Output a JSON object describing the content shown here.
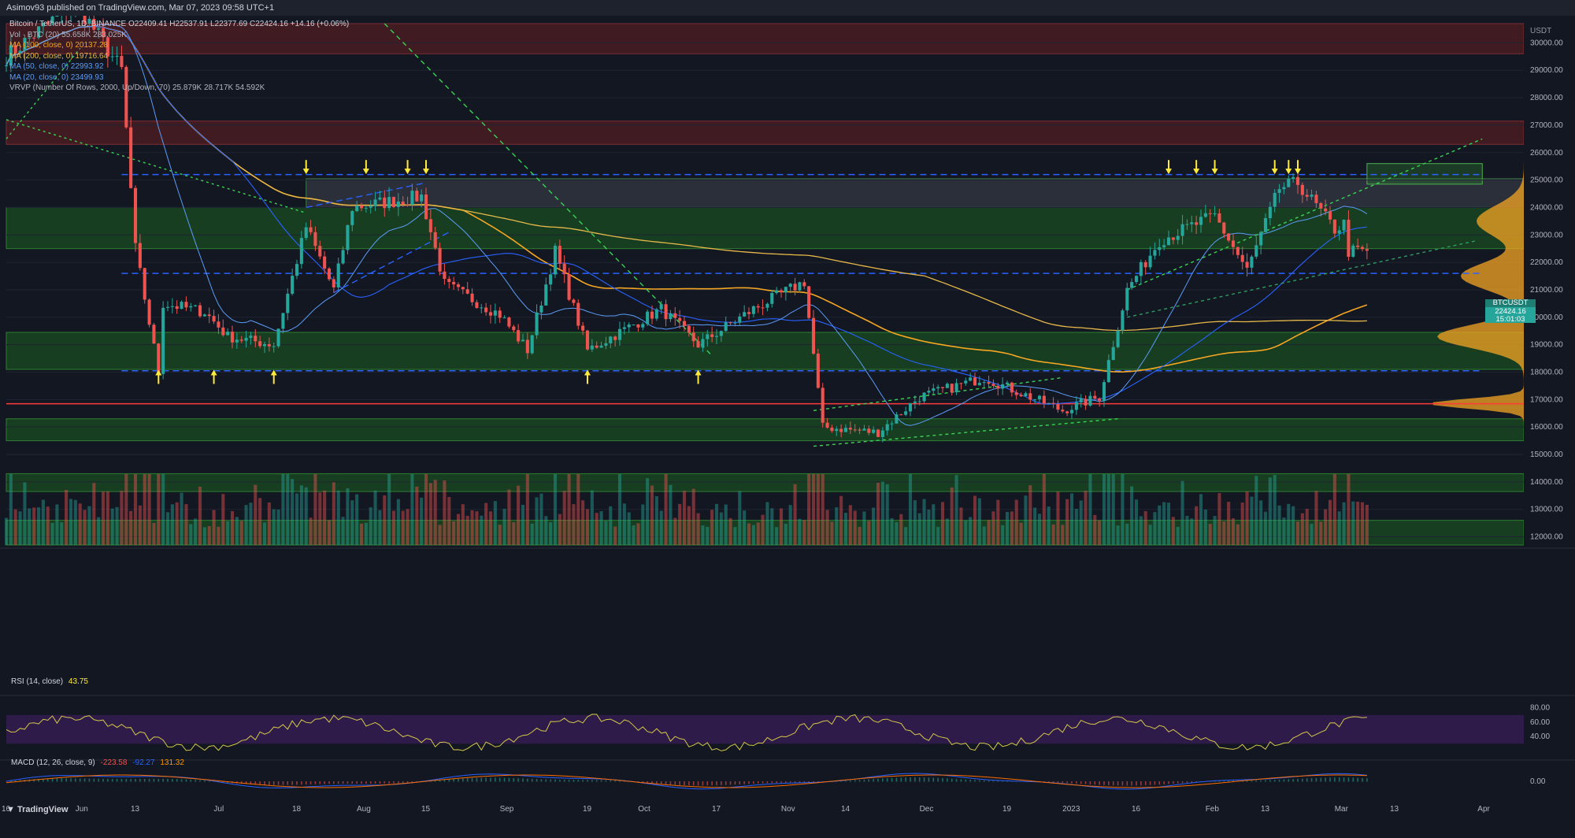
{
  "header": {
    "published": "Asimov93 published on TradingView.com, Mar 07, 2023 09:58 UTC+1"
  },
  "legend": {
    "ohlc": "Bitcoin / TetherUS, 1D, BINANCE  O22409.41  H22537.91  L22377.69  C22424.16  +14.16 (+0.06%)",
    "vol": "Vol · BTC (20)  55.658K  283.025K",
    "ma1": "MA (100, close, 0)  20137.28",
    "ma2": "MA (200, close, 0)  19716.64",
    "ma3": "MA (50, close, 0)  22993.92",
    "ma4": "MA (20, close, 0)  23499.93",
    "vrvp": "VRVP (Number Of Rows, 2000, Up/Down, 70)  25.879K  28.717K  54.592K",
    "rsi": "RSI (14, close)",
    "rsi_val": "43.75",
    "macd": "MACD (12, 26, close, 9)",
    "macd_vals": [
      "-223.58",
      "-92.27",
      "131.32"
    ]
  },
  "price_badge": {
    "symbol": "BTCUSDT",
    "price": "22424.16",
    "countdown": "15:01:03"
  },
  "axis": {
    "currency": "USDT",
    "price_ticks": [
      "30000.00",
      "29000.00",
      "28000.00",
      "27000.00",
      "26000.00",
      "25000.00",
      "24000.00",
      "23000.00",
      "22000.00",
      "21000.00",
      "20000.00",
      "19000.00",
      "18000.00",
      "17000.00",
      "16000.00",
      "15000.00",
      "14000.00",
      "13000.00",
      "12000.00"
    ],
    "rsi_ticks": [
      "80.00",
      "60.00",
      "40.00"
    ],
    "macd_ticks": [
      "0.00"
    ],
    "time_ticks": [
      "16",
      "Jun",
      "13",
      "Jul",
      "18",
      "Aug",
      "15",
      "Sep",
      "19",
      "Oct",
      "17",
      "Nov",
      "14",
      "Dec",
      "19",
      "2023",
      "16",
      "Feb",
      "13",
      "Mar",
      "13",
      "Apr"
    ]
  },
  "footer": {
    "brand": "TradingView"
  },
  "colors": {
    "bg": "#131722",
    "up": "#26a69a",
    "down": "#ef5350",
    "zone_green": "#1b5e20",
    "zone_red": "#4a1c22",
    "ma100": "#f5a623",
    "ma200": "#e6b84a",
    "ma50": "#2962ff",
    "ma20": "#5b9cf6",
    "rsi_band": "#3a1e5a",
    "yellow": "#ffeb3b",
    "blue_dash": "#2962ff"
  },
  "chart_data": {
    "type": "candlestick",
    "title": "Bitcoin / TetherUS, 1D, BINANCE",
    "ylabel": "USDT",
    "ylim": [
      11700,
      30700
    ],
    "x_range": [
      "2022-05-16",
      "2023-04-10"
    ],
    "current_price": 22424.16,
    "anchors": [
      [
        "2022-05-16",
        29500
      ],
      [
        "2022-05-31",
        31500
      ],
      [
        "2022-06-10",
        29000
      ],
      [
        "2022-06-13",
        22500
      ],
      [
        "2022-06-18",
        18000
      ],
      [
        "2022-06-19",
        20500
      ],
      [
        "2022-06-28",
        20200
      ],
      [
        "2022-07-03",
        19300
      ],
      [
        "2022-07-13",
        19000
      ],
      [
        "2022-07-20",
        23300
      ],
      [
        "2022-07-26",
        21000
      ],
      [
        "2022-07-30",
        24000
      ],
      [
        "2022-08-14",
        24400
      ],
      [
        "2022-08-19",
        21200
      ],
      [
        "2022-08-31",
        20100
      ],
      [
        "2022-09-06",
        18800
      ],
      [
        "2022-09-12",
        22400
      ],
      [
        "2022-09-19",
        18800
      ],
      [
        "2022-10-05",
        20300
      ],
      [
        "2022-10-13",
        19000
      ],
      [
        "2022-10-25",
        20300
      ],
      [
        "2022-11-05",
        21300
      ],
      [
        "2022-11-09",
        16000
      ],
      [
        "2022-11-21",
        15800
      ],
      [
        "2022-11-30",
        17100
      ],
      [
        "2022-12-14",
        17800
      ],
      [
        "2022-12-31",
        16600
      ],
      [
        "2023-01-08",
        17100
      ],
      [
        "2023-01-14",
        21000
      ],
      [
        "2023-01-21",
        22800
      ],
      [
        "2023-02-02",
        23700
      ],
      [
        "2023-02-09",
        21700
      ],
      [
        "2023-02-16",
        24700
      ],
      [
        "2023-02-20",
        24900
      ],
      [
        "2023-02-28",
        23200
      ],
      [
        "2023-03-02",
        23400
      ],
      [
        "2023-03-03",
        22400
      ],
      [
        "2023-03-07",
        22424
      ]
    ],
    "zones_green": [
      [
        22500,
        24000
      ],
      [
        18100,
        19450
      ],
      [
        15500,
        16300
      ],
      [
        13650,
        14300
      ],
      [
        11700,
        12600
      ]
    ],
    "zones_red": [
      [
        29600,
        30700
      ],
      [
        26300,
        27150
      ]
    ],
    "zone_grey": [
      24000,
      25050
    ],
    "horizontal_lines": [
      {
        "price": 16850,
        "color": "red"
      },
      {
        "price": 25200,
        "style": "dashed-blue"
      },
      {
        "price": 18050,
        "style": "dashed-blue"
      },
      {
        "price": 21600,
        "style": "dashed-blue"
      }
    ],
    "yellow_arrow_dates": [
      "2022-06-18",
      "2022-06-30",
      "2022-07-13",
      "2022-07-20",
      "2022-08-02",
      "2022-08-11",
      "2022-08-15",
      "2022-09-19",
      "2022-10-13",
      "2023-01-23",
      "2023-01-29",
      "2023-02-02",
      "2023-02-15",
      "2023-02-18",
      "2023-02-20"
    ],
    "rsi": {
      "ylim": [
        15,
        95
      ],
      "band": [
        30,
        70
      ],
      "last": 43.75
    },
    "macd": {
      "macd": -223.58,
      "signal": -92.27,
      "hist": 131.32
    }
  }
}
